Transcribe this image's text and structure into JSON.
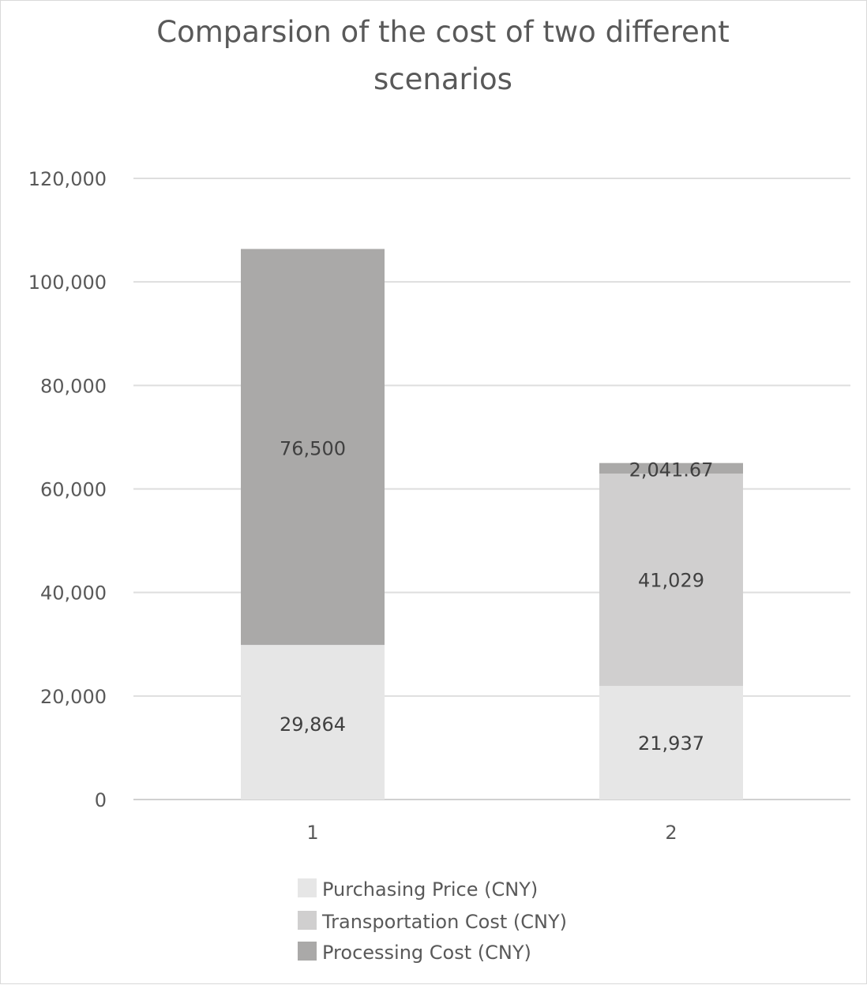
{
  "chart_data": {
    "type": "bar",
    "stacked": true,
    "title_lines": [
      "Comparsion of the cost of two different",
      "scenarios"
    ],
    "categories": [
      "1",
      "2"
    ],
    "series": [
      {
        "name": "Purchasing Price (CNY)",
        "values": [
          29864,
          21937
        ],
        "labels": [
          "29,864",
          "21,937"
        ],
        "color": "#e6e6e6"
      },
      {
        "name": "Transportation Cost (CNY)",
        "values": [
          0,
          41029
        ],
        "labels": [
          "",
          "41,029"
        ],
        "color": "#d0cfcf"
      },
      {
        "name": "Processing Cost (CNY)",
        "values": [
          76500,
          2041.67
        ],
        "labels": [
          "76,500",
          "2,041.67"
        ],
        "color": "#aaa9a8"
      }
    ],
    "ylim": [
      0,
      120000
    ],
    "yticks": [
      0,
      20000,
      40000,
      60000,
      80000,
      100000,
      120000
    ],
    "ytick_labels": [
      "0",
      "20,000",
      "40,000",
      "60,000",
      "80,000",
      "100,000",
      "120,000"
    ],
    "grid": true,
    "legend_position": "bottom"
  }
}
